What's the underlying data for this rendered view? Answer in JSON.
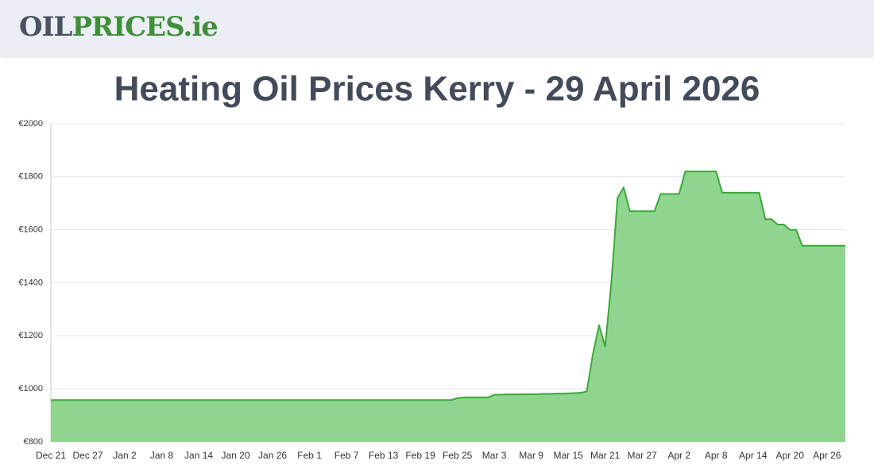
{
  "header": {
    "logo_dark": "OIL",
    "logo_green": "PRICES.ie"
  },
  "chart_data": {
    "type": "area",
    "title": "Heating Oil Prices Kerry - 29 April 2026",
    "categories": [
      "Dec 21",
      null,
      null,
      null,
      null,
      null,
      "Dec 27",
      null,
      null,
      null,
      null,
      null,
      "Jan 2",
      null,
      null,
      null,
      null,
      null,
      "Jan 8",
      null,
      null,
      null,
      null,
      null,
      "Jan 14",
      null,
      null,
      null,
      null,
      null,
      "Jan 20",
      null,
      null,
      null,
      null,
      null,
      "Jan 26",
      null,
      null,
      null,
      null,
      null,
      "Feb 1",
      null,
      null,
      null,
      null,
      null,
      "Feb 7",
      null,
      null,
      null,
      null,
      null,
      "Feb 13",
      null,
      null,
      null,
      null,
      null,
      "Feb 19",
      null,
      null,
      null,
      null,
      null,
      "Feb 25",
      null,
      null,
      null,
      null,
      null,
      "Mar 3",
      null,
      null,
      null,
      null,
      null,
      "Mar 9",
      null,
      null,
      null,
      null,
      null,
      "Mar 15",
      null,
      null,
      null,
      null,
      null,
      "Mar 21",
      null,
      null,
      null,
      null,
      null,
      "Mar 27",
      null,
      null,
      null,
      null,
      null,
      "Apr 2",
      null,
      null,
      null,
      null,
      null,
      "Apr 8",
      null,
      null,
      null,
      null,
      null,
      "Apr 14",
      null,
      null,
      null,
      null,
      null,
      "Apr 20",
      null,
      null,
      null,
      null,
      null,
      "Apr 26",
      null,
      null,
      null
    ],
    "values": [
      958,
      958,
      958,
      958,
      958,
      958,
      958,
      958,
      958,
      958,
      958,
      958,
      958,
      958,
      958,
      958,
      958,
      958,
      958,
      958,
      958,
      958,
      958,
      958,
      958,
      958,
      958,
      958,
      958,
      958,
      958,
      958,
      958,
      958,
      958,
      958,
      958,
      958,
      958,
      958,
      958,
      958,
      958,
      958,
      958,
      958,
      958,
      958,
      958,
      958,
      958,
      958,
      958,
      958,
      958,
      958,
      958,
      958,
      958,
      958,
      958,
      958,
      958,
      958,
      958,
      958,
      965,
      968,
      968,
      968,
      968,
      968,
      978,
      978,
      979,
      979,
      979,
      980,
      980,
      980,
      981,
      981,
      982,
      982,
      983,
      984,
      985,
      990,
      1130,
      1240,
      1160,
      1400,
      1720,
      1760,
      1670,
      1670,
      1670,
      1670,
      1670,
      1735,
      1735,
      1735,
      1735,
      1820,
      1820,
      1820,
      1820,
      1820,
      1820,
      1740,
      1740,
      1740,
      1740,
      1740,
      1740,
      1740,
      1640,
      1640,
      1620,
      1620,
      1600,
      1600,
      1540,
      1540,
      1540,
      1540,
      1540,
      1540,
      1540,
      1540
    ],
    "color": "#3aa83a",
    "fill": "#8fd58f",
    "ylim": [
      800,
      2000
    ],
    "yticks": [
      {
        "value": 800,
        "label": "€800"
      },
      {
        "value": 1000,
        "label": "€1000"
      },
      {
        "value": 1200,
        "label": "€1200"
      },
      {
        "value": 1400,
        "label": "€1400"
      },
      {
        "value": 1600,
        "label": "€1600"
      },
      {
        "value": 1800,
        "label": "€1800"
      },
      {
        "value": 2000,
        "label": "€2000"
      }
    ],
    "grid": true
  }
}
